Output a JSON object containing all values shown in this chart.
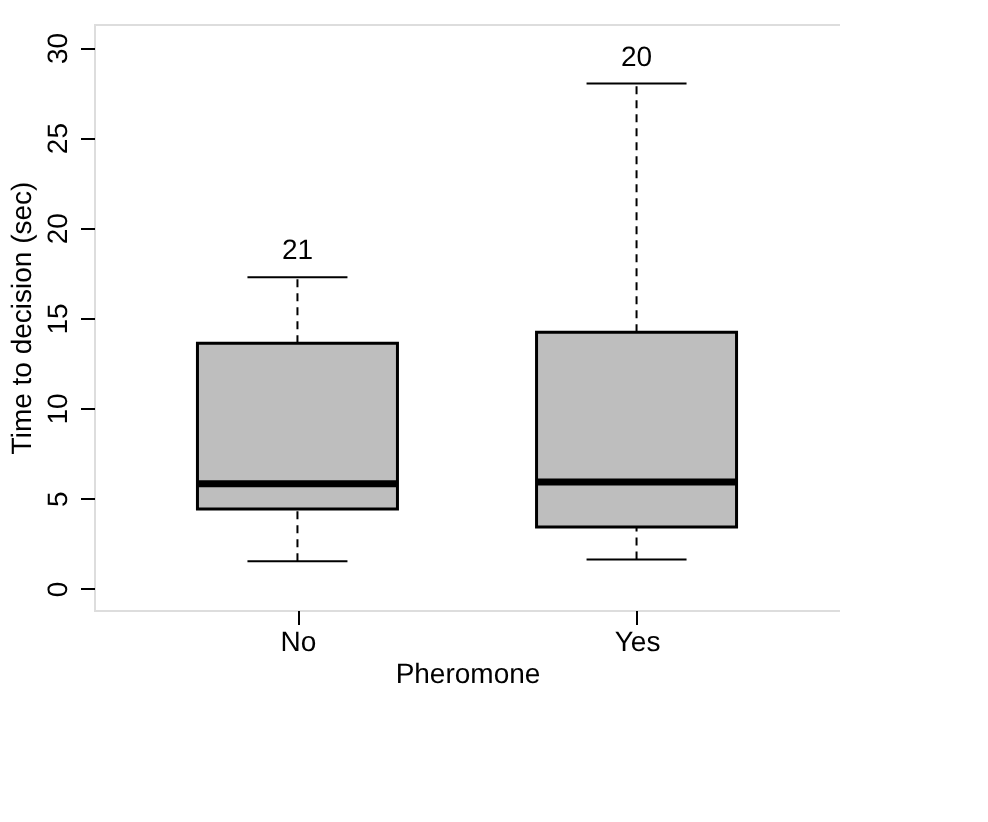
{
  "chart_data": {
    "type": "box",
    "xlabel": "Pheromone",
    "ylabel": "Time to decision (sec)",
    "categories": [
      "No",
      "Yes"
    ],
    "color": "#bebebe",
    "boxes": [
      {
        "low": 1.5,
        "q1": 4.4,
        "median": 5.8,
        "q3": 13.6,
        "high": 17.25
      },
      {
        "low": 1.6,
        "q1": 3.4,
        "median": 5.9,
        "q3": 14.2,
        "high": 28.0
      }
    ],
    "ylim": [
      -1.2,
      31.3
    ],
    "yticks": [
      0,
      5,
      10,
      15,
      20,
      25,
      30
    ],
    "grid": false,
    "annotations": [
      "21",
      "20"
    ]
  }
}
